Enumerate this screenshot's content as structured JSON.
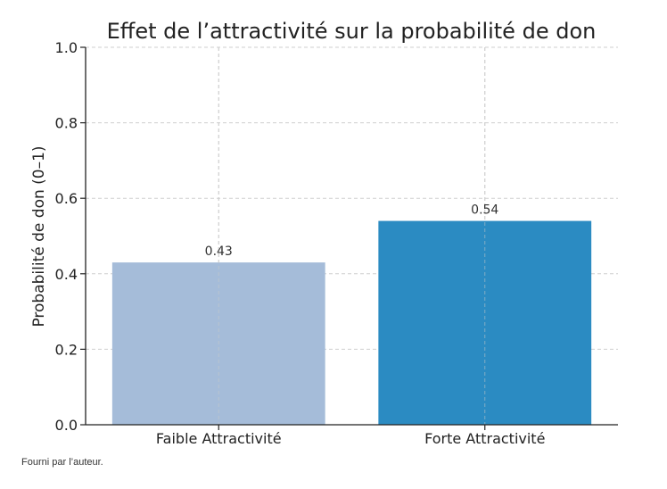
{
  "chart_data": {
    "type": "bar",
    "title": "Effet de l’attractivité sur la probabilité de don",
    "xlabel": "",
    "ylabel": "Probabilité de don (0–1)",
    "categories": [
      "Faible Attractivité",
      "Forte Attractivité"
    ],
    "values": [
      0.43,
      0.54
    ],
    "value_labels": [
      "0.43",
      "0.54"
    ],
    "bar_colors": [
      "#a5bcd9",
      "#2b8bc2"
    ],
    "ylim": [
      0,
      1.0
    ],
    "yticks": [
      0.0,
      0.2,
      0.4,
      0.6,
      0.8,
      1.0
    ],
    "ytick_labels": [
      "0.0",
      "0.2",
      "0.4",
      "0.6",
      "0.8",
      "1.0"
    ],
    "grid": true
  },
  "caption": "Fourni par l’auteur."
}
